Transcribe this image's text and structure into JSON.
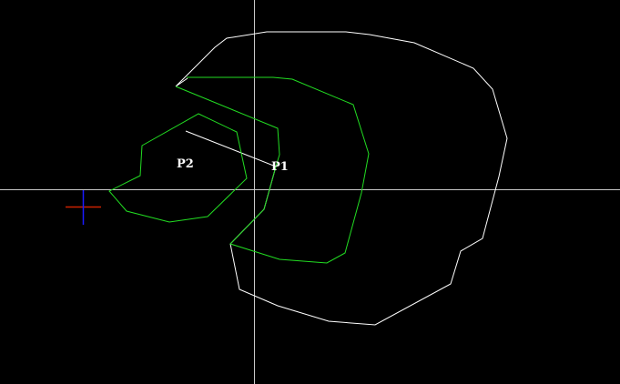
{
  "colors": {
    "background": "#000000",
    "crosshair": "#c8c8c8",
    "white_outline": "#ffffff",
    "green_outline": "#22dd22",
    "origin_x_axis": "#cc2200",
    "origin_y_axis": "#1a1aff",
    "label_color": "#ffffff"
  },
  "labels": {
    "p1": "P1",
    "p2": "P2"
  },
  "icons": {
    "origin": "ucs-origin-icon",
    "crosshair": "cursor-crosshair-icon"
  }
}
